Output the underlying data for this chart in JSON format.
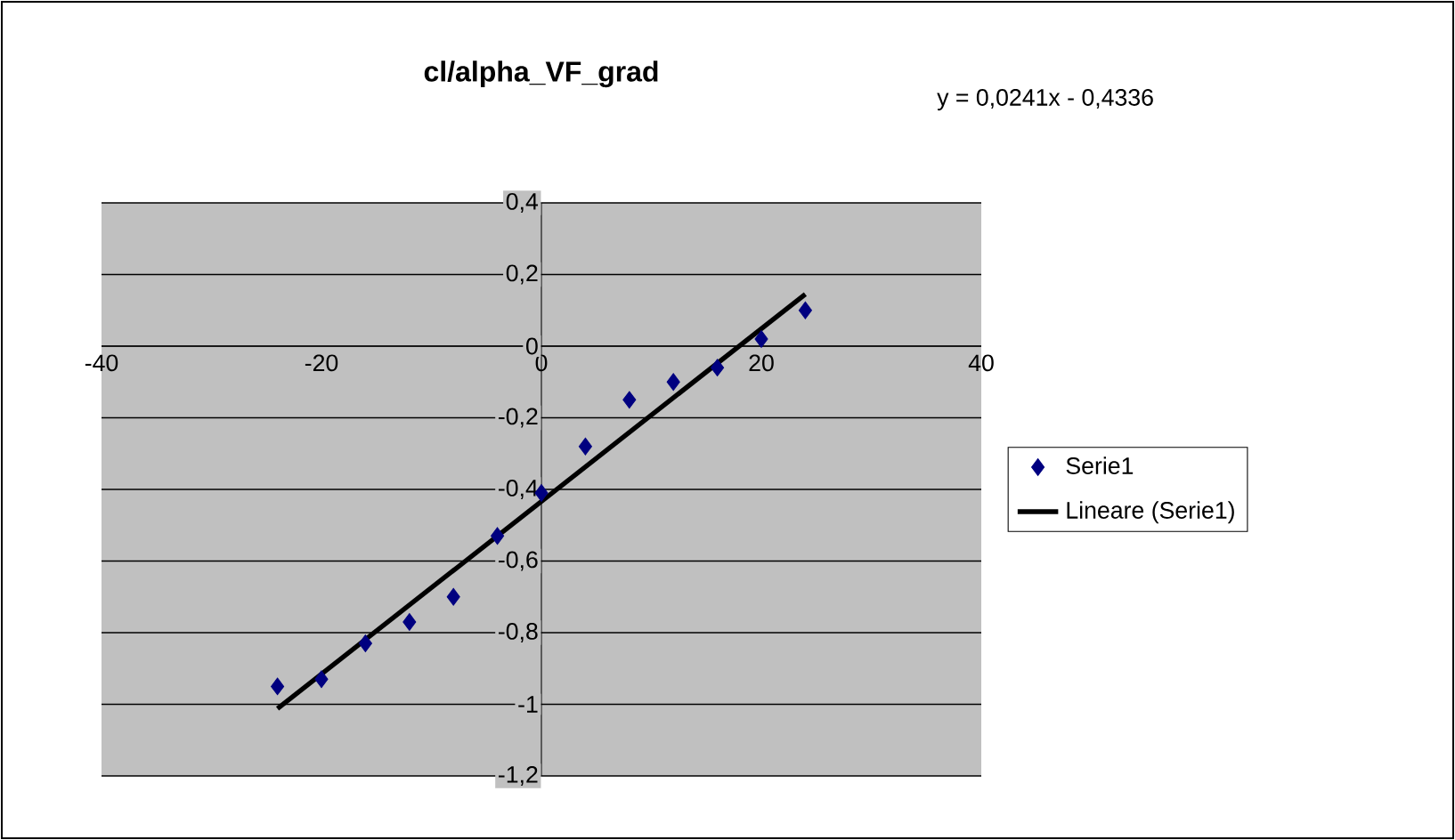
{
  "chart_data": {
    "type": "scatter",
    "title": "cl/alpha_VF_grad",
    "annotations": [
      "y = 0,0241x - 0,4336"
    ],
    "xlim": [
      -40,
      40
    ],
    "xticks": [
      -40,
      -20,
      0,
      20,
      40
    ],
    "ylim": [
      -1.2,
      0.4
    ],
    "yticks": [
      {
        "value": -1.2,
        "label": "-1,2"
      },
      -1,
      {
        "value": -0.8,
        "label": "-0,8"
      },
      {
        "value": -0.6,
        "label": "-0,6"
      },
      {
        "value": -0.4,
        "label": "-0,4"
      },
      {
        "value": -0.2,
        "label": "-0,2"
      },
      0,
      {
        "value": 0.2,
        "label": "0,2"
      },
      {
        "value": 0.4,
        "label": "0,4"
      }
    ],
    "grid": "y",
    "legend": "right",
    "marker": "diamond",
    "series": [
      {
        "name": "Serie1",
        "color": "#000080",
        "x": [
          -24,
          -20,
          -16,
          -12,
          -8,
          -4,
          0,
          4,
          8,
          12,
          16,
          20,
          24
        ],
        "values": [
          -0.95,
          -0.93,
          -0.83,
          -0.77,
          -0.7,
          -0.53,
          -0.41,
          -0.28,
          -0.15,
          -0.1,
          -0.06,
          0.02,
          0.1
        ]
      },
      {
        "name": "Lineare (Serie1)",
        "type": "line",
        "marker": "none",
        "color": "#000000",
        "x": [
          -24,
          24
        ],
        "values": [
          -1.012,
          0.145
        ]
      }
    ]
  }
}
